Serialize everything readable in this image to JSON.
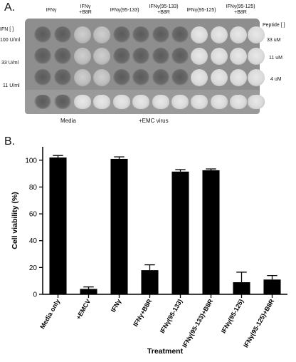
{
  "panel_a": {
    "letter": "A.",
    "col_headers": [
      {
        "lines": [
          "IFNγ"
        ]
      },
      {
        "lines": [
          "IFNγ",
          "+B8R"
        ]
      },
      {
        "lines": [
          "IFNγ(95-133)"
        ]
      },
      {
        "lines": [
          "IFNγ(95-133)",
          "+B8R"
        ]
      },
      {
        "lines": [
          "IFNγ(95-125)"
        ]
      },
      {
        "lines": [
          "IFNγ(95-125)",
          "+B8R"
        ]
      }
    ],
    "ifn_header": "IFN [ ]",
    "peptide_header": "Peptide [ ]",
    "rows": [
      {
        "ifn": "100 U/ml",
        "peptide": "33 uM"
      },
      {
        "ifn": "33 U/ml",
        "peptide": "11 uM"
      },
      {
        "ifn": "11 U/ml",
        "peptide": "4 uM"
      }
    ],
    "bottom_labels": [
      "Media",
      "+EMC virus"
    ]
  },
  "panel_b": {
    "letter": "B."
  },
  "chart_data": {
    "type": "bar",
    "categories": [
      "Media only",
      "+EMCV",
      "IFNγ",
      "IFNγ+B8R",
      "IFNγ(95-133)",
      "IFNγ(95-133)+B8R",
      "IFNγ(95-125)",
      "IFNγ(95-125)+B8R"
    ],
    "values": [
      102,
      4,
      101,
      18,
      91.5,
      92.5,
      9,
      11
    ],
    "errors": [
      1.5,
      1.5,
      1.5,
      4,
      1.5,
      1,
      7.5,
      3
    ],
    "xlabel": "Treatment",
    "ylabel": "Cell viability (%)",
    "ylim": [
      0,
      110
    ],
    "yticks": [
      0,
      20,
      40,
      60,
      80,
      100
    ],
    "bar_color": "#000000",
    "grid": false
  }
}
